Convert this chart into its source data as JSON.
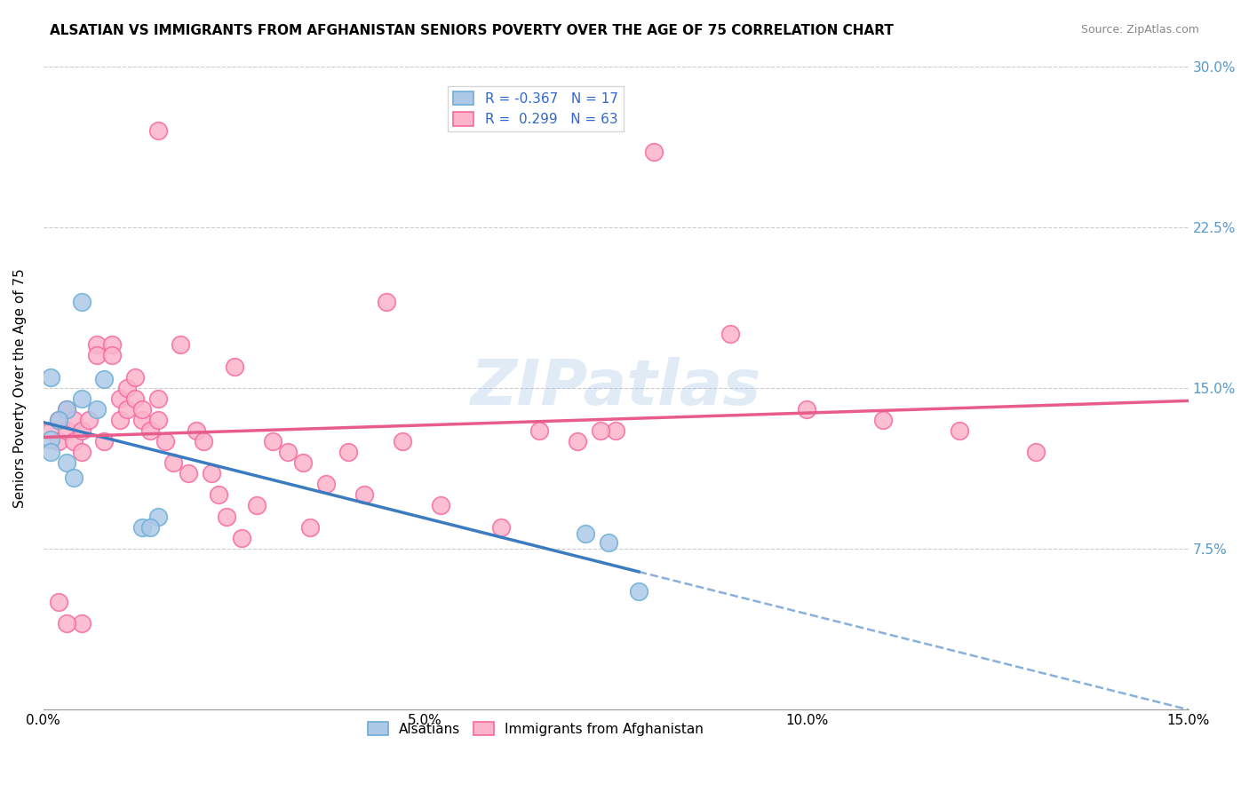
{
  "title": "ALSATIAN VS IMMIGRANTS FROM AFGHANISTAN SENIORS POVERTY OVER THE AGE OF 75 CORRELATION CHART",
  "source": "Source: ZipAtlas.com",
  "ylabel": "Seniors Poverty Over the Age of 75",
  "xlim": [
    0,
    0.15
  ],
  "ylim": [
    0,
    0.3
  ],
  "yticks": [
    0.0,
    0.075,
    0.15,
    0.225,
    0.3
  ],
  "yticklabels": [
    "",
    "7.5%",
    "15.0%",
    "22.5%",
    "30.0%"
  ],
  "blue_R": -0.367,
  "blue_N": 17,
  "pink_R": 0.299,
  "pink_N": 63,
  "blue_edge_color": "#6baed6",
  "blue_fill": "#aec9e8",
  "pink_edge_color": "#f768a1",
  "pink_fill": "#fbb4c9",
  "blue_line_color": "#3a7cbf",
  "pink_line_color": "#e85c8a",
  "watermark": "ZIPatlas",
  "blue_scatter_x": [
    0.005,
    0.008,
    0.005,
    0.003,
    0.001,
    0.002,
    0.001,
    0.001,
    0.003,
    0.004,
    0.015,
    0.013,
    0.014,
    0.007,
    0.071,
    0.074,
    0.078
  ],
  "blue_scatter_y": [
    0.19,
    0.154,
    0.145,
    0.14,
    0.155,
    0.135,
    0.126,
    0.12,
    0.115,
    0.108,
    0.09,
    0.085,
    0.085,
    0.14,
    0.082,
    0.078,
    0.055
  ],
  "pink_scatter_x": [
    0.001,
    0.002,
    0.002,
    0.003,
    0.003,
    0.004,
    0.004,
    0.005,
    0.005,
    0.006,
    0.007,
    0.007,
    0.008,
    0.009,
    0.009,
    0.01,
    0.01,
    0.011,
    0.011,
    0.012,
    0.012,
    0.013,
    0.013,
    0.014,
    0.015,
    0.015,
    0.016,
    0.017,
    0.018,
    0.019,
    0.02,
    0.021,
    0.022,
    0.023,
    0.024,
    0.026,
    0.028,
    0.03,
    0.032,
    0.034,
    0.037,
    0.04,
    0.042,
    0.047,
    0.052,
    0.06,
    0.065,
    0.07,
    0.075,
    0.08,
    0.09,
    0.1,
    0.11,
    0.12,
    0.13,
    0.073,
    0.045,
    0.035,
    0.025,
    0.015,
    0.005,
    0.003,
    0.002
  ],
  "pink_scatter_y": [
    0.13,
    0.135,
    0.125,
    0.14,
    0.13,
    0.135,
    0.125,
    0.13,
    0.12,
    0.135,
    0.17,
    0.165,
    0.125,
    0.17,
    0.165,
    0.135,
    0.145,
    0.15,
    0.14,
    0.155,
    0.145,
    0.135,
    0.14,
    0.13,
    0.145,
    0.135,
    0.125,
    0.115,
    0.17,
    0.11,
    0.13,
    0.125,
    0.11,
    0.1,
    0.09,
    0.08,
    0.095,
    0.125,
    0.12,
    0.115,
    0.105,
    0.12,
    0.1,
    0.125,
    0.095,
    0.085,
    0.13,
    0.125,
    0.13,
    0.26,
    0.175,
    0.14,
    0.135,
    0.13,
    0.12,
    0.13,
    0.19,
    0.085,
    0.16,
    0.27,
    0.04,
    0.04,
    0.05
  ]
}
